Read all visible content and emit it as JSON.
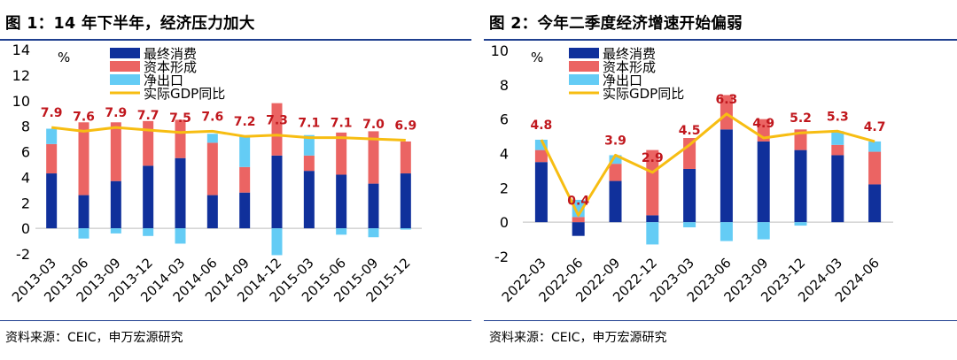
{
  "colors": {
    "consumption": "#10309b",
    "capital": "#eb6463",
    "net_exports": "#64ccf5",
    "gdp": "#f7bd12",
    "label": "#c0171d"
  },
  "panels": [
    {
      "title": "图 1：14 年下半年，经济压力加大",
      "source": "资料来源：CEIC，申万宏源研究",
      "chart_data": {
        "type": "bar",
        "ylabel": "%",
        "ylim": [
          -2,
          14
        ],
        "yticks": [
          -2,
          0,
          2,
          4,
          6,
          8,
          10,
          12,
          14
        ],
        "categories": [
          "2013-03",
          "2013-06",
          "2013-09",
          "2013-12",
          "2014-03",
          "2014-06",
          "2014-09",
          "2014-12",
          "2015-03",
          "2015-06",
          "2015-09",
          "2015-12"
        ],
        "series": [
          {
            "name": "最终消费",
            "kind": "bar",
            "values": [
              4.3,
              2.6,
              3.7,
              4.9,
              5.5,
              2.6,
              2.8,
              5.7,
              4.5,
              4.2,
              3.5,
              4.3
            ]
          },
          {
            "name": "资本形成",
            "kind": "bar",
            "values": [
              2.3,
              5.7,
              4.6,
              3.5,
              3.0,
              4.1,
              2.0,
              4.1,
              1.2,
              3.3,
              4.1,
              2.5
            ]
          },
          {
            "name": "净出口",
            "kind": "bar",
            "values": [
              1.2,
              -0.8,
              -0.4,
              -0.6,
              -1.2,
              0.7,
              2.4,
              -2.1,
              1.6,
              -0.5,
              -0.7,
              -0.1
            ]
          },
          {
            "name": "实际GDP同比",
            "kind": "line",
            "values": [
              7.9,
              7.6,
              7.9,
              7.7,
              7.5,
              7.6,
              7.2,
              7.3,
              7.1,
              7.1,
              7.0,
              6.9
            ]
          }
        ],
        "data_labels": [
          "7.9",
          "7.6",
          "7.9",
          "7.7",
          "7.5",
          "7.6",
          "7.2",
          "7.3",
          "7.1",
          "7.1",
          "7.0",
          "6.9"
        ],
        "legend": {
          "entries": [
            "最终消费",
            "资本形成",
            "净出口",
            "实际GDP同比"
          ],
          "placement": "top-center"
        },
        "grid": false
      }
    },
    {
      "title": "图 2：今年二季度经济增速开始偏弱",
      "source": "资料来源：CEIC，申万宏源研究",
      "chart_data": {
        "type": "bar",
        "ylabel": "%",
        "ylim": [
          -2,
          10
        ],
        "yticks": [
          -2,
          0,
          2,
          4,
          6,
          8,
          10
        ],
        "categories": [
          "2022-03",
          "2022-06",
          "2022-09",
          "2022-12",
          "2023-03",
          "2023-06",
          "2023-09",
          "2023-12",
          "2024-03",
          "2024-06"
        ],
        "series": [
          {
            "name": "最终消费",
            "kind": "bar",
            "values": [
              3.5,
              -0.8,
              2.4,
              0.4,
              3.1,
              5.4,
              4.7,
              4.2,
              3.9,
              2.2
            ]
          },
          {
            "name": "资本形成",
            "kind": "bar",
            "values": [
              0.7,
              0.3,
              1.0,
              3.8,
              1.8,
              2.0,
              1.3,
              1.2,
              0.6,
              1.9
            ]
          },
          {
            "name": "净出口",
            "kind": "bar",
            "values": [
              0.6,
              1.0,
              0.5,
              -1.3,
              -0.3,
              -1.1,
              -1.0,
              -0.2,
              0.8,
              0.6
            ]
          },
          {
            "name": "实际GDP同比",
            "kind": "line",
            "values": [
              4.8,
              0.4,
              3.9,
              2.9,
              4.5,
              6.3,
              4.9,
              5.2,
              5.3,
              4.7
            ]
          }
        ],
        "data_labels": [
          "4.8",
          "0.4",
          "3.9",
          "2.9",
          "4.5",
          "6.3",
          "4.9",
          "5.2",
          "5.3",
          "4.7"
        ],
        "legend": {
          "entries": [
            "最终消费",
            "资本形成",
            "净出口",
            "实际GDP同比"
          ],
          "placement": "top-center"
        },
        "grid": false
      }
    }
  ]
}
